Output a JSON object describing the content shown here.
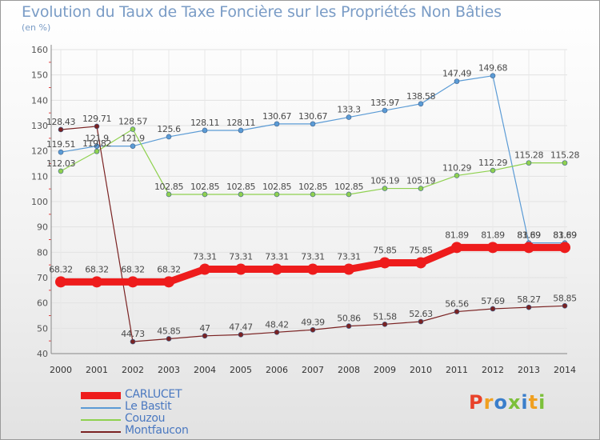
{
  "title": "Evolution du Taux de Taxe Foncière sur les Propriétés Non Bâties",
  "unit_label": "(en %)",
  "logo": {
    "text": "Proxiti",
    "colors": [
      "#e8422a",
      "#f0a020",
      "#3a7ecb",
      "#7cc03a",
      "#3a7ecb",
      "#f0a020",
      "#7cc03a"
    ]
  },
  "chart_data": {
    "type": "line",
    "title": "Evolution du Taux de Taxe Foncière sur les Propriétés Non Bâties",
    "ylabel": "(en %)",
    "xlabel": "",
    "x": [
      "2000",
      "2001",
      "2002",
      "2003",
      "2004",
      "2005",
      "2006",
      "2007",
      "2008",
      "2009",
      "2010",
      "2011",
      "2012",
      "2013",
      "2014"
    ],
    "ylim": [
      40,
      160
    ],
    "yticks": [
      "40",
      "50",
      "60",
      "70",
      "80",
      "90",
      "100",
      "110",
      "120",
      "130",
      "140",
      "150",
      "160"
    ],
    "grid": true,
    "legend_position": "bottom-left",
    "series": [
      {
        "name": "CARLUCET",
        "color": "#ee1c1c",
        "emphasis": true,
        "values": [
          68.32,
          68.32,
          68.32,
          68.32,
          73.31,
          73.31,
          73.31,
          73.31,
          73.31,
          75.85,
          75.85,
          81.89,
          81.89,
          81.89,
          81.89
        ],
        "labels": [
          "68.32",
          "68.32",
          "68.32",
          "68.32",
          "73.31",
          "73.31",
          "73.31",
          "73.31",
          "73.31",
          "75.85",
          "75.85",
          "81.89",
          "81.89",
          "81.89",
          "81.89"
        ]
      },
      {
        "name": "Le Bastit",
        "color": "#5b9bd5",
        "values": [
          119.51,
          121.9,
          121.9,
          125.6,
          128.11,
          128.11,
          130.67,
          130.67,
          133.3,
          135.97,
          138.58,
          147.49,
          149.68,
          83.69,
          83.69
        ],
        "labels": [
          "119.51",
          "121.9",
          "121.9",
          "125.6",
          "128.11",
          "128.11",
          "130.67",
          "130.67",
          "133.3",
          "135.97",
          "138.58",
          "147.49",
          "149.68",
          "83.69",
          "83.69"
        ]
      },
      {
        "name": "Couzou",
        "color": "#8fd14f",
        "values": [
          112.03,
          119.82,
          128.57,
          102.85,
          102.85,
          102.85,
          102.85,
          102.85,
          102.85,
          105.19,
          105.19,
          110.29,
          112.29,
          115.28,
          115.28
        ],
        "labels": [
          "112.03",
          "119.82",
          "128.57",
          "102.85",
          "102.85",
          "102.85",
          "102.85",
          "102.85",
          "102.85",
          "105.19",
          "105.19",
          "110.29",
          "112.29",
          "115.28",
          "115.28"
        ]
      },
      {
        "name": "Montfaucon",
        "color": "#7a2222",
        "values": [
          128.43,
          129.71,
          44.73,
          45.85,
          47,
          47.47,
          48.42,
          49.39,
          50.86,
          51.58,
          52.63,
          56.56,
          57.69,
          58.27,
          58.85
        ],
        "labels": [
          "128.43",
          "129.71",
          "44.73",
          "45.85",
          "47",
          "47.47",
          "48.42",
          "49.39",
          "50.86",
          "51.58",
          "52.63",
          "56.56",
          "57.69",
          "58.27",
          "58.85"
        ]
      }
    ]
  }
}
